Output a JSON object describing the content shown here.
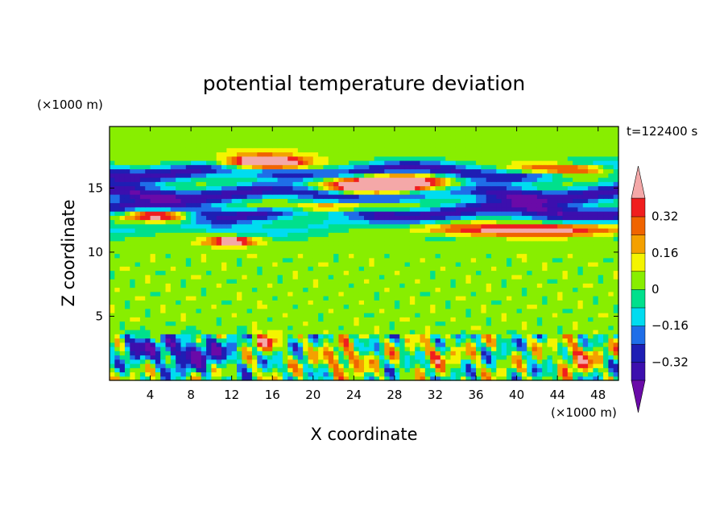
{
  "chart_data": {
    "type": "heatmap",
    "title": "potential temperature deviation",
    "xlabel": "X coordinate",
    "ylabel": "Z coordinate",
    "x_unit": "(×1000 m)",
    "y_unit": "(×1000 m)",
    "time_label": "t=122400 s",
    "xlim": [
      0,
      50
    ],
    "ylim": [
      0,
      19.8
    ],
    "x_ticks": [
      4,
      8,
      12,
      16,
      20,
      24,
      28,
      32,
      36,
      40,
      44,
      48
    ],
    "y_ticks": [
      5,
      10,
      15
    ],
    "colorbar": {
      "levels": [
        -0.4,
        -0.32,
        -0.24,
        -0.16,
        -0.08,
        0,
        0.08,
        0.16,
        0.24,
        0.32,
        0.4
      ],
      "tick_labels": [
        "-0.32",
        "-0.16",
        "0",
        "0.16",
        "0.32"
      ],
      "tick_values": [
        -0.32,
        -0.16,
        0,
        0.16,
        0.32
      ],
      "colors": [
        "#6a0aa8",
        "#3c0fae",
        "#1e1eb4",
        "#1f6ee8",
        "#00dcf0",
        "#00e08c",
        "#88ee00",
        "#f4f400",
        "#f4a000",
        "#f06400",
        "#f01e1e",
        "#f4a8a8"
      ],
      "extend": "both"
    },
    "features": [
      {
        "kind": "band",
        "z": 11.9,
        "half_width": 0.9,
        "value": -0.14
      },
      {
        "kind": "band",
        "z": 13.2,
        "half_width": 0.8,
        "value": -0.4
      },
      {
        "kind": "band",
        "z": 14.6,
        "half_width": 0.8,
        "value": -0.42
      },
      {
        "kind": "band",
        "z": 16.3,
        "half_width": 0.8,
        "value": -0.4
      },
      {
        "kind": "band",
        "z": 18.4,
        "half_width": 1.2,
        "value": 0.03
      },
      {
        "kind": "blob",
        "x": 15,
        "z": 17.0,
        "sx": 4,
        "sz": 0.55,
        "value": 0.8
      },
      {
        "kind": "blob",
        "x": 27,
        "z": 15.3,
        "sx": 7,
        "sz": 0.7,
        "value": 0.85
      },
      {
        "kind": "blob",
        "x": 45,
        "z": 16.5,
        "sx": 5,
        "sz": 0.45,
        "value": 0.7
      },
      {
        "kind": "blob",
        "x": 41,
        "z": 11.8,
        "sx": 11,
        "sz": 0.5,
        "value": 0.6
      },
      {
        "kind": "blob",
        "x": 5,
        "z": 12.9,
        "sx": 3.5,
        "sz": 0.5,
        "value": 0.65
      },
      {
        "kind": "blob",
        "x": 12,
        "z": 10.9,
        "sx": 2.5,
        "sz": 0.35,
        "value": 0.55
      },
      {
        "kind": "blob",
        "x": 22,
        "z": 13.6,
        "sx": 6,
        "sz": 0.45,
        "value": 0.6
      },
      {
        "kind": "blob",
        "x": 8,
        "z": 2.1,
        "sx": 4,
        "sz": 1.2,
        "value": -0.38
      },
      {
        "kind": "blob",
        "x": 2.5,
        "z": 2.8,
        "sx": 1.5,
        "sz": 0.8,
        "value": -0.32
      },
      {
        "kind": "blob",
        "x": 15,
        "z": 3.0,
        "sx": 1.3,
        "sz": 0.6,
        "value": 0.3
      },
      {
        "kind": "blob",
        "x": 46,
        "z": 1.8,
        "sx": 1.6,
        "sz": 1.0,
        "value": 0.32
      },
      {
        "kind": "blob",
        "x": 23,
        "z": 1.6,
        "sx": 2.0,
        "sz": 0.9,
        "value": 0.28
      },
      {
        "kind": "blob",
        "x": 32,
        "z": 2.0,
        "sx": 1.5,
        "sz": 0.8,
        "value": 0.24
      }
    ]
  }
}
